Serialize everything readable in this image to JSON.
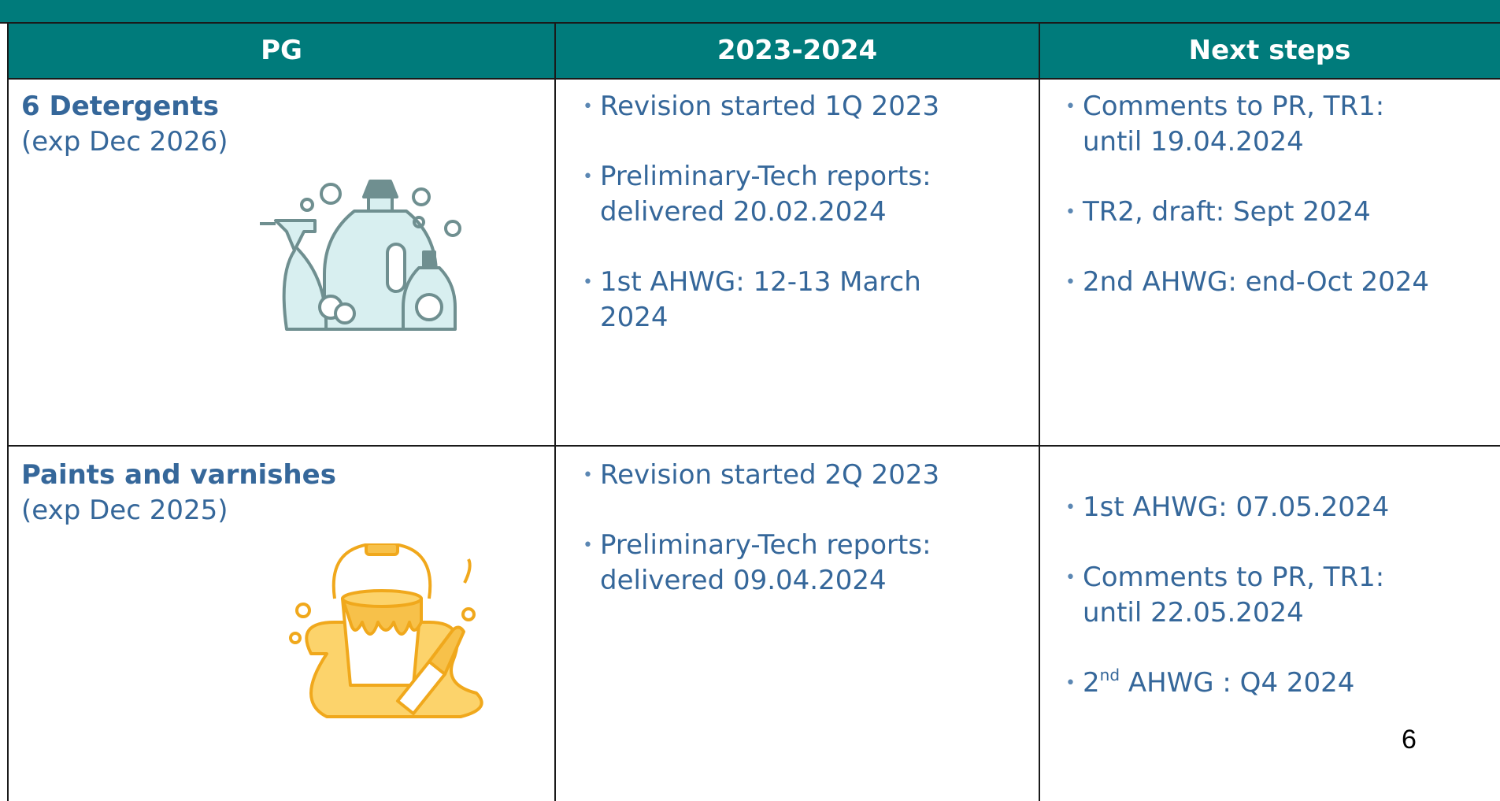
{
  "table": {
    "header": [
      "PG",
      "2023-2024",
      "Next steps"
    ],
    "rows": [
      {
        "pg": {
          "name": "6 Detergents",
          "expiry": "(exp Dec 2026)"
        },
        "progress": [
          [
            "Revision started 1Q 2023"
          ],
          [
            "Preliminary-Tech reports:",
            "delivered 20.02.2024"
          ],
          [
            "1st AHWG: 12-13 March",
            "2024"
          ]
        ],
        "next_steps": [
          [
            "Comments to PR, TR1:",
            "until 19.04.2024"
          ],
          [
            "TR2, draft: Sept 2024"
          ],
          [
            "2nd AHWG: end-Oct 2024"
          ]
        ]
      },
      {
        "pg": {
          "name": "Paints and varnishes",
          "expiry": "(exp Dec 2025)"
        },
        "progress": [
          [
            "Revision started 2Q 2023"
          ],
          [
            "Preliminary-Tech reports:",
            "delivered 09.04.2024"
          ]
        ],
        "next_steps": [
          [
            "1st AHWG: 07.05.2024"
          ],
          [
            "Comments to PR, TR1:",
            "until 22.05.2024"
          ],
          [
            {
              "base": "2",
              "sup": "nd",
              "rest": " AHWG : Q4 2024"
            }
          ]
        ]
      }
    ]
  },
  "page_number": "6"
}
